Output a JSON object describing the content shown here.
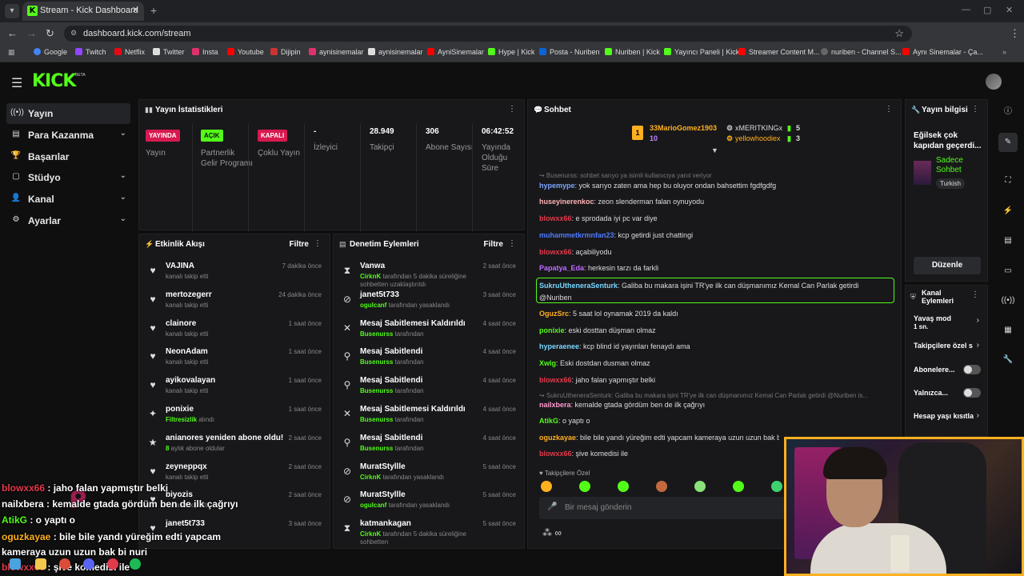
{
  "browser": {
    "tab_title": "Stream - Kick Dashboard",
    "url": "dashboard.kick.com/stream",
    "bookmarks": [
      "Google",
      "Twitch",
      "Netflix",
      "Twitter",
      "Insta",
      "Youtube",
      "Dijipin",
      "aynisinemalar",
      "aynisinemalar",
      "AyniSinemalar",
      "Hype | Kick",
      "Posta - Nuriben",
      "Nuriben | Kick",
      "Yayıncı Paneli | Kick",
      "Streamer Content M...",
      "nuriben - Channel S...",
      "Aynı Sinemalar - Ça..."
    ]
  },
  "logo": "KICK",
  "logo_beta": "BETA",
  "sidebar": {
    "items": [
      {
        "icon": "((•))",
        "label": "Yayın"
      },
      {
        "icon": "▤",
        "label": "Para Kazanma"
      },
      {
        "icon": "🏆",
        "label": "Başarılar"
      },
      {
        "icon": "▢",
        "label": "Stüdyo"
      },
      {
        "icon": "👤",
        "label": "Kanal"
      },
      {
        "icon": "⚙",
        "label": "Ayarlar"
      }
    ]
  },
  "stats_panel": {
    "title": "Yayın İstatistikleri",
    "items": [
      {
        "badge": "YAYINDA",
        "label": "Yayın"
      },
      {
        "badge": "AÇIK",
        "label": "Partnerlik Gelir Programı"
      },
      {
        "badge": "KAPALI",
        "label": "Çoklu Yayın"
      },
      {
        "value": "-",
        "label": "İzleyici"
      },
      {
        "value": "28.949",
        "label": "Takipçi"
      },
      {
        "value": "306",
        "label": "Abone Sayısı"
      },
      {
        "value": "06:42:52",
        "label": "Yayında Olduğu Süre"
      }
    ]
  },
  "activity": {
    "title": "Etkinlik Akışı",
    "filter": "Filtre",
    "rows": [
      {
        "icon": "♥",
        "name": "VAJINA",
        "sub": "kanalı takip etti",
        "time": "7 dakika önce"
      },
      {
        "icon": "♥",
        "name": "mertozegerr",
        "sub": "kanalı takip etti",
        "time": "24 dakika önce"
      },
      {
        "icon": "♥",
        "name": "clainore",
        "sub": "kanalı takip etti",
        "time": "1 saat önce"
      },
      {
        "icon": "♥",
        "name": "NeonAdam",
        "sub": "kanalı takip etti",
        "time": "1 saat önce"
      },
      {
        "icon": "♥",
        "name": "ayikovalayan",
        "sub": "kanalı takip etti",
        "time": "1 saat önce"
      },
      {
        "icon": "✦",
        "name": "ponixie",
        "sub_green": "Filtresizlik",
        "sub": " alındı",
        "time": "1 saat önce"
      },
      {
        "icon": "★",
        "name": "anianores yeniden abone oldu!",
        "sub_green": "8",
        "sub": " aylık abone oldular",
        "time": "2 saat önce"
      },
      {
        "icon": "♥",
        "name": "zeyneppqx",
        "sub": "kanalı takip etti",
        "time": "2 saat önce"
      },
      {
        "icon": "♥",
        "name": "biyozis",
        "sub": "kanalı takip etti",
        "time": "2 saat önce"
      },
      {
        "icon": "♥",
        "name": "janet5t733",
        "sub": "",
        "time": "3 saat önce"
      }
    ]
  },
  "moderation": {
    "title": "Denetim Eylemleri",
    "filter": "Filtre",
    "rows": [
      {
        "icon": "⧗",
        "name": "Vanwa",
        "sub_green": "CirknK",
        "sub": " tarafından 5 dakika süreliğine sohbetten uzaklaştırıldı",
        "time": "2 saat önce"
      },
      {
        "icon": "⊘",
        "name": "janet5t733",
        "sub_green": "ogulcanf",
        "sub": " tarafından yasaklandı",
        "time": "3 saat önce"
      },
      {
        "icon": "✕",
        "name": "Mesaj Sabitlemesi Kaldırıldı",
        "sub_green": "Busenurss",
        "sub": " tarafından",
        "time": "4 saat önce"
      },
      {
        "icon": "⚲",
        "name": "Mesaj Sabitlendi",
        "sub_green": "Busenurss",
        "sub": " tarafından",
        "time": "4 saat önce"
      },
      {
        "icon": "⚲",
        "name": "Mesaj Sabitlendi",
        "sub_green": "Busenurss",
        "sub": " tarafından",
        "time": "4 saat önce"
      },
      {
        "icon": "✕",
        "name": "Mesaj Sabitlemesi Kaldırıldı",
        "sub_green": "Busenurss",
        "sub": " tarafından",
        "time": "4 saat önce"
      },
      {
        "icon": "⚲",
        "name": "Mesaj Sabitlendi",
        "sub_green": "Busenurss",
        "sub": " tarafından",
        "time": "4 saat önce"
      },
      {
        "icon": "⊘",
        "name": "MuratStyllle",
        "sub_green": "CirknK",
        "sub": " tarafından yasaklandı",
        "time": "5 saat önce"
      },
      {
        "icon": "⊘",
        "name": "MuratStyllle",
        "sub_green": "ogulcanf",
        "sub": " tarafından yasaklandı",
        "time": "5 saat önce"
      },
      {
        "icon": "⧗",
        "name": "katmankagan",
        "sub_green": "CirknK",
        "sub": " tarafından 5 dakika süreliğine sohbetten",
        "time": "5 saat önce"
      }
    ]
  },
  "chat": {
    "title": "Sohbet",
    "top": [
      {
        "rank": "1",
        "name": "33MarioGomez1903",
        "count": "10"
      },
      {
        "name": "xMERITKINGx",
        "count": "5"
      },
      {
        "name": "yellowhoodiex",
        "count": "3"
      }
    ],
    "reply1": "↪ Busenurss: sohbet sarıyo ya isimli kullanıcıya yanıt veriyor",
    "messages": [
      {
        "name": "hypemype",
        "color": "#7aa7ff",
        "text": ": yok sarıyo zaten ama hep bu oluyor ondan bahsettim fgdfgdfg"
      },
      {
        "name": "huseyinerenkoc",
        "color": "#ffb4b4",
        "text": ": zeon slenderman falan oynuyodu"
      },
      {
        "name": "blowxx66",
        "color": "#e23a4b",
        "text": ": e sprodada iyi pc var diye"
      },
      {
        "name": "muhammetkrmnfan23",
        "color": "#4f7bff",
        "text": ": kcp getirdi just chattingi"
      },
      {
        "name": "blowxx66",
        "color": "#e23a4b",
        "text": ": açabiliyodu"
      },
      {
        "name": "Papatya_Eda",
        "color": "#c06bff",
        "text": ": herkesin tarzı da farkli"
      },
      {
        "name": "SukruUtheneraSenturk",
        "color": "#7ad7ff",
        "text": ": Galiba bu makara işini TR'ye ilk can düşmanımız Kemal Can Parlak getirdi"
      },
      {
        "name": "OguzSrc",
        "color": "#ffb01f",
        "text": ": 5 saat lol oynamak 2019 da kaldı"
      },
      {
        "name": "ponixie",
        "color": "#53fc18",
        "text": ": eski dosttan düşman olmaz"
      },
      {
        "name": "hyperaenee",
        "color": "#7ad7ff",
        "text": ": kcp blind id yayınları fenaydı ama"
      },
      {
        "name": "Xwlg",
        "color": "#53fc18",
        "text": ": Eski dostdan dusman olmaz"
      },
      {
        "name": "blowxx66",
        "color": "#e23a4b",
        "text": ": jaho falan yapmıştır belki"
      },
      {
        "name": "nailxbera",
        "color": "#ff9ad0",
        "text": ": kemalde gtada gördüm ben de ilk çağrıyı"
      },
      {
        "name": "AtikG",
        "color": "#53fc18",
        "text": ": o yaptı o"
      },
      {
        "name": "oguzkayae",
        "color": "#ffb01f",
        "text": ": bile bile yandı yüreğim edti yapcam kameraya uzun uzun bak bi nuri"
      },
      {
        "name": "blowxx66",
        "color": "#e23a4b",
        "text": ": şive komedisi ile"
      }
    ],
    "hl_second_line": "@Nuriben",
    "reply2": "↪ SukruUtheneraSenturk: Galiba bu makara işini TR'ye ilk can düşmanımız Kemal Can Parlak getirdi @Nuriben is...",
    "emote_label": "♥ Takipçilere Özel",
    "input_placeholder": "Bir mesaj gönderin"
  },
  "stream_info": {
    "title": "Yayın bilgisi",
    "stream_title": "Eğilsek çok kapıdan geçerdi...",
    "mode": "Sadece Sohbet",
    "lang": "Turkish",
    "edit_button": "Düzenle"
  },
  "channel_actions": {
    "title": "Kanal Eylemleri",
    "slow_mode": "Yavaş mod",
    "slow_value": "1 sn.",
    "followers_only": "Takipçilere özel s",
    "subs_only": "Abonelere...",
    "only": "Yalnızca...",
    "account_age": "Hesap yaşı kısıtla"
  },
  "overlay_chat": [
    {
      "name": "blowxx66",
      "color": "#e23a4b",
      "text": " : jaho falan yapmıştır belki"
    },
    {
      "name": "nailxbera",
      "color": "#ffffff",
      "text": " : kemalde gtada gördüm ben de ilk çağrıyı"
    },
    {
      "name": "AtikG",
      "color": "#53fc18",
      "text": " : o yaptı o"
    },
    {
      "name": "oguzkayae",
      "color": "#ffb01f",
      "text": " : bile bile yandı yüreğim edti yapcam"
    },
    {
      "name": "",
      "color": "#ffffff",
      "text": "kameraya uzun uzun bak bi nuri"
    },
    {
      "name": "blowxx66",
      "color": "#e23a4b",
      "text": " : şive komedisi ile"
    }
  ],
  "colors": {
    "accent": "#53fc18",
    "live_red": "#d8194f",
    "cam_border": "#ffb01f"
  }
}
